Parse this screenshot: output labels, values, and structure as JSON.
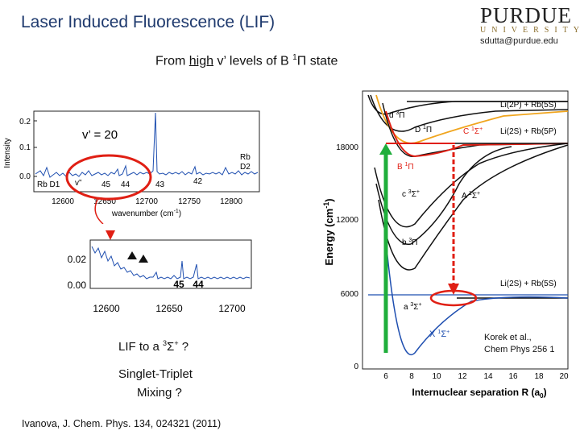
{
  "header": {
    "title": "Laser Induced Fluorescence (LIF)",
    "logo_word": "PURDUE",
    "logo_sub": "UNIVERSITY",
    "email": "sdutta@purdue.edu"
  },
  "subtitle": {
    "prefix": "From ",
    "underlined": "high",
    "rest": " v’  levels of B ",
    "sup": "1",
    "end": "Π state"
  },
  "top_spectrum": {
    "v_label": "v’ = 20",
    "v_double": "v”",
    "ylabel": "Intensity",
    "xlabel": "wavenumber (cm",
    "xlabel_sup": "-1",
    "yticks": [
      "0.2",
      "0.1",
      "0.0"
    ],
    "xticks": [
      "12600",
      "12650",
      "12700",
      "12750",
      "12800"
    ],
    "labels": [
      "Rb D1",
      "45",
      "44",
      "43",
      "42",
      "Rb",
      "D2"
    ]
  },
  "zoom_spectrum": {
    "yticks": [
      "0.02",
      "0.00"
    ],
    "xticks": [
      "12600",
      "12650",
      "12700"
    ],
    "labels": [
      "45",
      "44"
    ]
  },
  "text": {
    "lif_q": "LIF to a ",
    "lif_sup": "3",
    "lif_sym": "Σ",
    "lif_sup2": "+",
    "lif_end": " ?",
    "mix1": "Singlet-Triplet",
    "mix2": "Mixing ?",
    "ivanova": "Ivanova, J. Chem. Phys. 134, 024321 (2011)",
    "korek1": "Korek et al.,",
    "korek2": "Chem Phys 256 1"
  },
  "potential_plot": {
    "ylabel": "Energy (cm",
    "ylabel_sup": "-1",
    "xlabel": "Internuclear separation R (a",
    "xlabel_sub": "0",
    "yticks": [
      "18000",
      "12000",
      "6000",
      "0"
    ],
    "xticks": [
      "6",
      "8",
      "10",
      "12",
      "14",
      "16",
      "18",
      "20"
    ],
    "asymptotes": [
      "Li(2P) + Rb(5S)",
      "Li(2S) + Rb(5P)",
      "Li(2S) + Rb(5S)"
    ],
    "states": {
      "d": "d",
      "D": "D",
      "C": "C",
      "B": "B",
      "c": "c",
      "A": "A",
      "b": "b",
      "a": "a",
      "X": "X",
      "Pi": "Π",
      "Sigma": "Σ",
      "one": "1",
      "three": "3",
      "plus": "+"
    },
    "colors": {
      "green": "#1fae3b",
      "red": "#e01f14",
      "blue": "#1f4fb0",
      "orange": "#f0a51e"
    }
  }
}
